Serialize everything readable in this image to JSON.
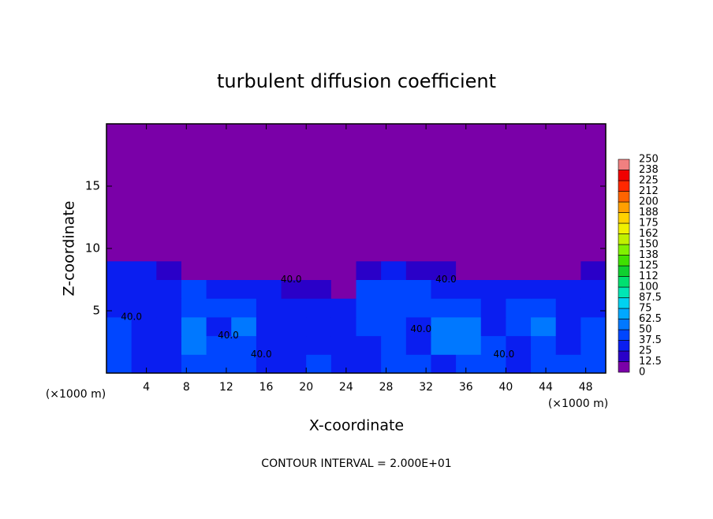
{
  "chart_data": {
    "type": "heatmap",
    "title": "turbulent diffusion coefficient",
    "x_label": "X-coordinate",
    "y_label": "Z-coordinate",
    "x_unit": "(×1000 m)",
    "footer": "CONTOUR INTERVAL = 2.000E+01",
    "xlim": [
      0,
      50
    ],
    "ylim": [
      0,
      20
    ],
    "xticks": [
      4,
      8,
      12,
      16,
      20,
      24,
      28,
      32,
      36,
      40,
      44,
      48
    ],
    "yticks": [
      5,
      10,
      15
    ],
    "xbins": [
      0,
      2.5,
      5,
      7.5,
      10,
      12.5,
      15,
      17.5,
      20,
      22.5,
      25,
      27.5,
      30,
      32.5,
      35,
      37.5,
      40,
      42.5,
      45,
      47.5,
      50
    ],
    "ybins": [
      0,
      1.5,
      3,
      4.5,
      6,
      7.5,
      9,
      20
    ],
    "z": [
      [
        40,
        35,
        30,
        40,
        45,
        40,
        35,
        30,
        40,
        35,
        25,
        45,
        40,
        35,
        45,
        40,
        35,
        45,
        40,
        45
      ],
      [
        40,
        35,
        35,
        50,
        40,
        45,
        30,
        35,
        30,
        35,
        35,
        45,
        35,
        50,
        60,
        40,
        30,
        45,
        35,
        40
      ],
      [
        40,
        35,
        30,
        50,
        35,
        50,
        30,
        30,
        35,
        30,
        45,
        40,
        35,
        50,
        55,
        35,
        40,
        50,
        35,
        40
      ],
      [
        35,
        30,
        30,
        45,
        40,
        45,
        35,
        30,
        30,
        30,
        45,
        40,
        40,
        45,
        40,
        35,
        40,
        40,
        30,
        35
      ],
      [
        30,
        30,
        30,
        40,
        35,
        30,
        25,
        20,
        15,
        12,
        40,
        40,
        40,
        30,
        30,
        25,
        30,
        25,
        30,
        35
      ],
      [
        25,
        25,
        20,
        10,
        10,
        10,
        5,
        5,
        5,
        5,
        15,
        25,
        20,
        15,
        10,
        10,
        5,
        5,
        10,
        20
      ],
      [
        0,
        0,
        0,
        0,
        0,
        0,
        0,
        0,
        0,
        0,
        0,
        0,
        0,
        0,
        0,
        0,
        0,
        0,
        0,
        0
      ]
    ],
    "colorbar_ticks": [
      0,
      12.5,
      25,
      37.5,
      50,
      62.5,
      75,
      87.5,
      100,
      112,
      125,
      138,
      150,
      162,
      175,
      188,
      200,
      212,
      225,
      238,
      250
    ],
    "colors": [
      "#7a00a8",
      "#2a00c8",
      "#0a1ef0",
      "#0046ff",
      "#0078ff",
      "#00a8ff",
      "#00d2f0",
      "#00e6b4",
      "#00e070",
      "#10d030",
      "#40e000",
      "#80f000",
      "#c0f000",
      "#f0f000",
      "#ffd200",
      "#ffa000",
      "#ff6400",
      "#ff2800",
      "#f00000",
      "#f08080"
    ],
    "contour_labels": [
      "40.0",
      "40.0",
      "40.0",
      "40.0",
      "40.0",
      "40.0",
      "40.0"
    ]
  }
}
